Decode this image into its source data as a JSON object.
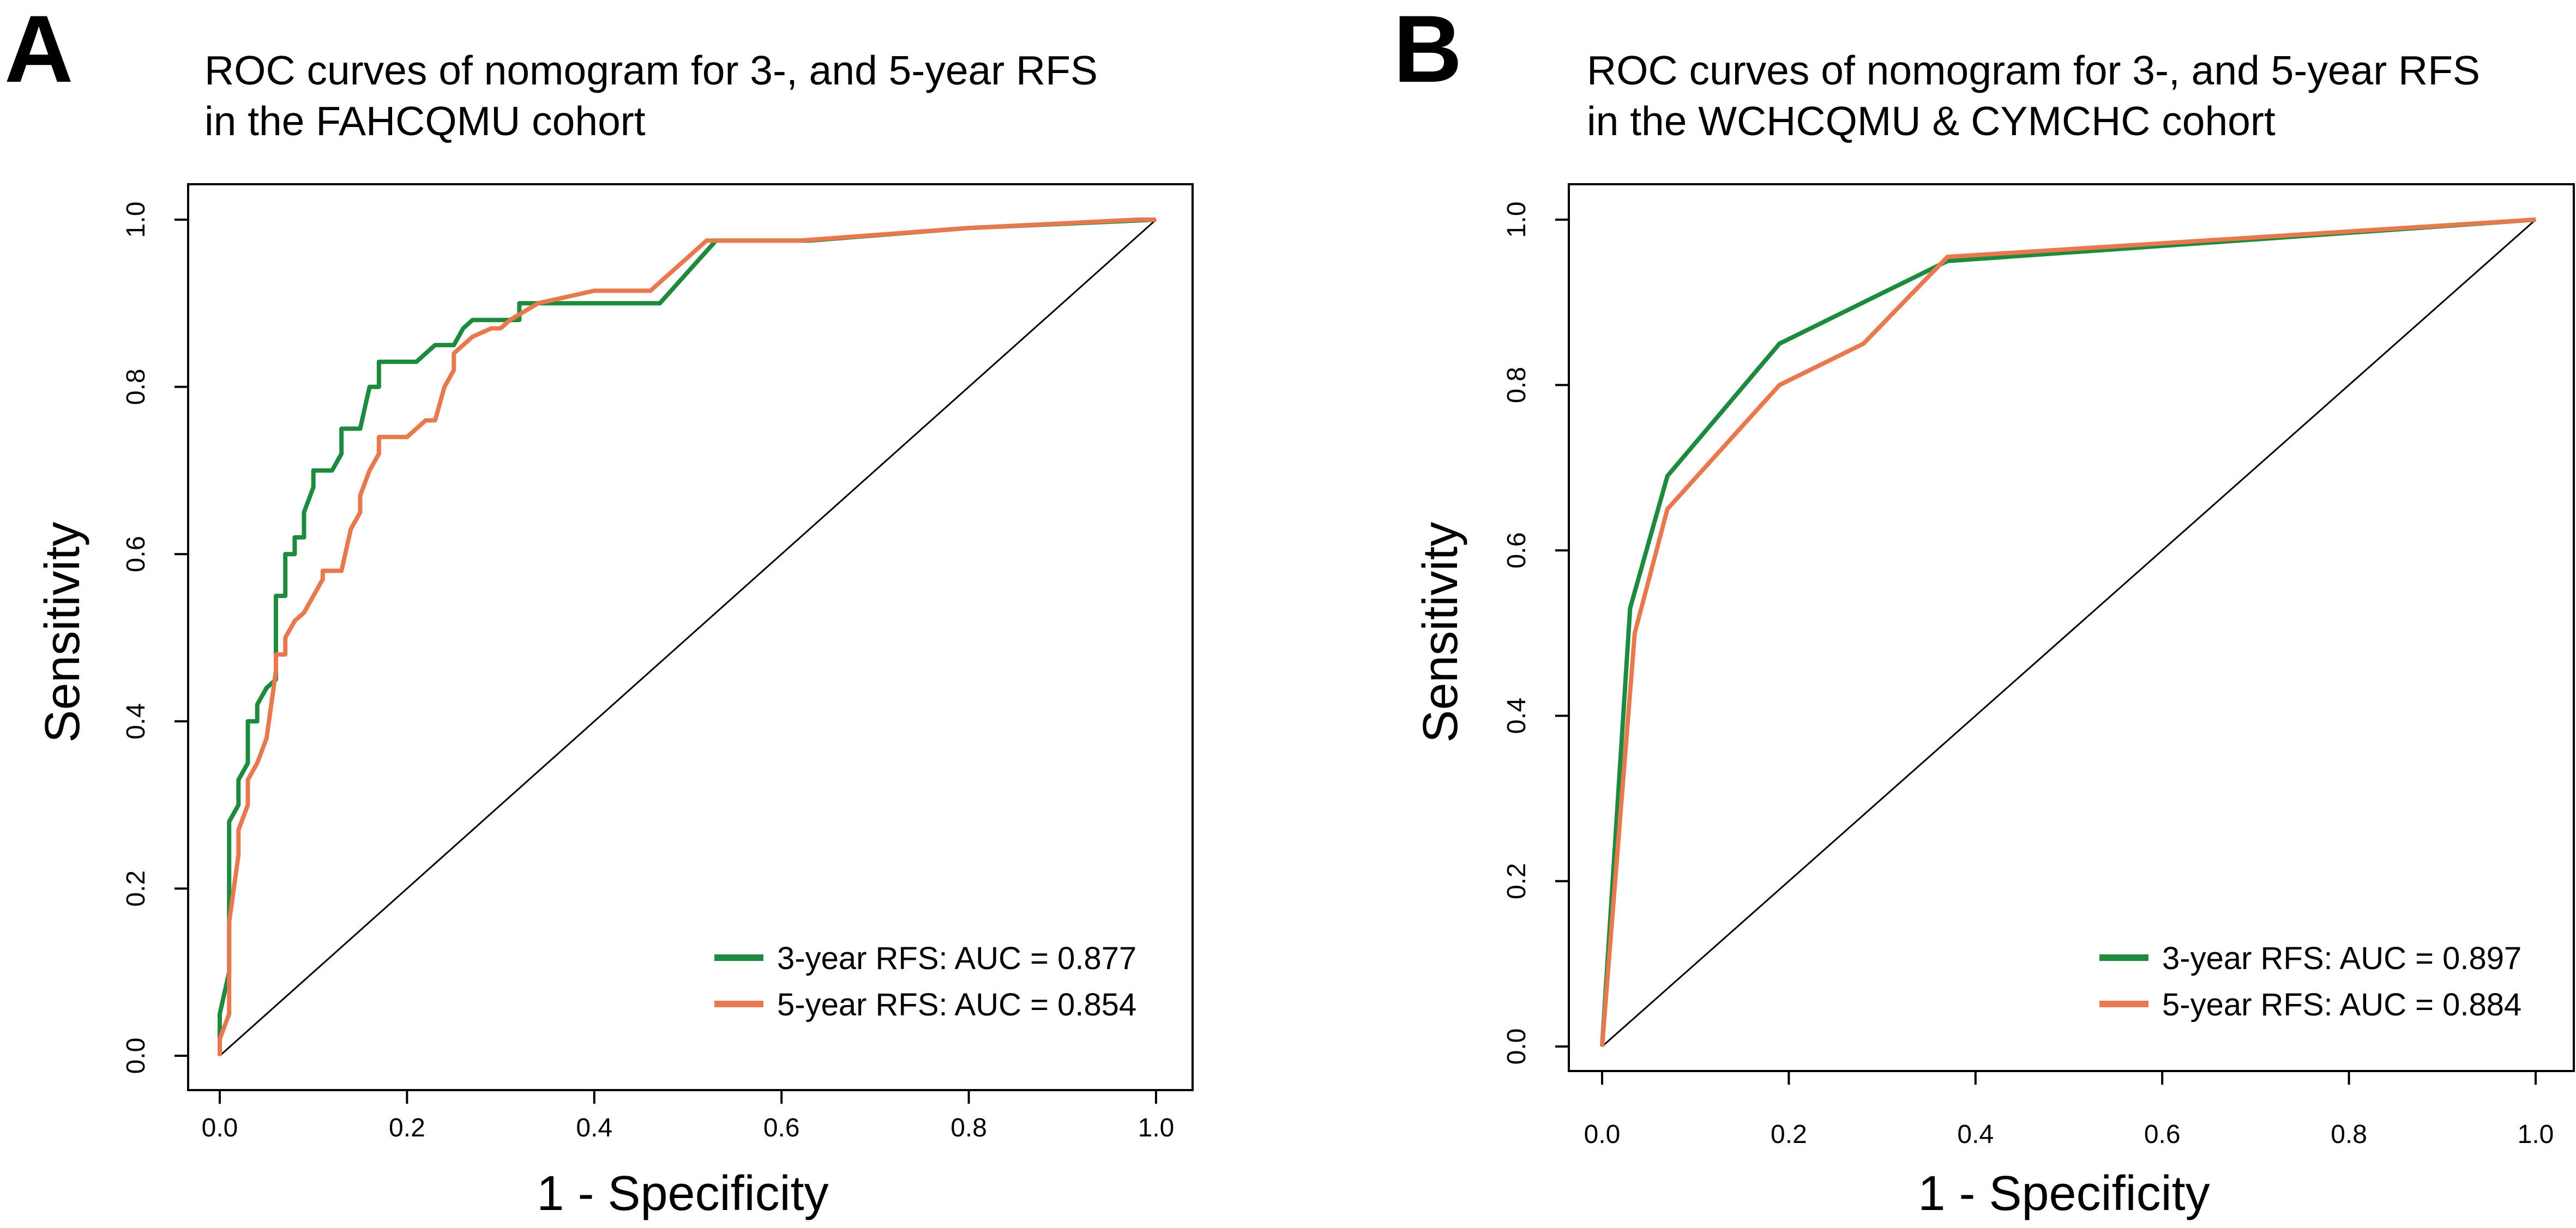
{
  "colors": {
    "series_3yr": "#1e8a3e",
    "series_5yr": "#e8794f",
    "diagonal": "#000000"
  },
  "chart_data": [
    {
      "type": "line",
      "panel_label": "A",
      "title_line1": "ROC curves of nomogram for 3-, and 5-year RFS",
      "title_line2": "in the FAHCQMU cohort",
      "xlabel": "1 - Specificity",
      "ylabel": "Sensitivity",
      "xlim": [
        0,
        1
      ],
      "ylim": [
        0,
        1
      ],
      "xticks": [
        "0.0",
        "0.2",
        "0.4",
        "0.6",
        "0.8",
        "1.0"
      ],
      "yticks": [
        "0.0",
        "0.2",
        "0.4",
        "0.6",
        "0.8",
        "1.0"
      ],
      "diagonal": true,
      "legend_position": "bottom-right",
      "series": [
        {
          "name": "3-year RFS",
          "legend": "3-year RFS: AUC = 0.877",
          "auc": 0.877,
          "color": "#1e8a3e",
          "x": [
            0.0,
            0.0,
            0.01,
            0.01,
            0.01,
            0.02,
            0.02,
            0.03,
            0.03,
            0.04,
            0.04,
            0.05,
            0.06,
            0.06,
            0.07,
            0.07,
            0.08,
            0.08,
            0.09,
            0.09,
            0.1,
            0.1,
            0.12,
            0.13,
            0.13,
            0.15,
            0.16,
            0.17,
            0.17,
            0.21,
            0.22,
            0.23,
            0.25,
            0.26,
            0.27,
            0.3,
            0.32,
            0.32,
            0.35,
            0.47,
            0.53,
            0.63,
            0.8,
            1.0
          ],
          "y": [
            0.0,
            0.05,
            0.1,
            0.2,
            0.28,
            0.3,
            0.33,
            0.35,
            0.4,
            0.4,
            0.42,
            0.44,
            0.45,
            0.55,
            0.55,
            0.6,
            0.6,
            0.62,
            0.62,
            0.65,
            0.68,
            0.7,
            0.7,
            0.72,
            0.75,
            0.75,
            0.8,
            0.8,
            0.83,
            0.83,
            0.84,
            0.85,
            0.85,
            0.87,
            0.88,
            0.88,
            0.88,
            0.9,
            0.9,
            0.9,
            0.975,
            0.975,
            0.99,
            1.0
          ]
        },
        {
          "name": "5-year RFS",
          "legend": "5-year RFS: AUC = 0.854",
          "auc": 0.854,
          "color": "#e8794f",
          "x": [
            0.0,
            0.0,
            0.01,
            0.01,
            0.02,
            0.02,
            0.03,
            0.03,
            0.04,
            0.05,
            0.06,
            0.06,
            0.07,
            0.07,
            0.08,
            0.09,
            0.1,
            0.11,
            0.11,
            0.13,
            0.14,
            0.15,
            0.15,
            0.16,
            0.17,
            0.17,
            0.19,
            0.2,
            0.22,
            0.23,
            0.24,
            0.25,
            0.25,
            0.26,
            0.27,
            0.29,
            0.3,
            0.31,
            0.34,
            0.4,
            0.46,
            0.52,
            0.62,
            0.8,
            0.98,
            1.0
          ],
          "y": [
            0.0,
            0.02,
            0.05,
            0.16,
            0.24,
            0.27,
            0.3,
            0.33,
            0.35,
            0.38,
            0.46,
            0.48,
            0.48,
            0.5,
            0.52,
            0.53,
            0.55,
            0.57,
            0.58,
            0.58,
            0.63,
            0.65,
            0.67,
            0.7,
            0.72,
            0.74,
            0.74,
            0.74,
            0.76,
            0.76,
            0.8,
            0.82,
            0.84,
            0.85,
            0.86,
            0.87,
            0.87,
            0.88,
            0.9,
            0.915,
            0.915,
            0.975,
            0.975,
            0.99,
            1.0,
            1.0
          ]
        }
      ]
    },
    {
      "type": "line",
      "panel_label": "B",
      "title_line1": "ROC curves of nomogram for 3-, and 5-year RFS",
      "title_line2": "in the WCHCQMU & CYMCHC cohort",
      "xlabel": "1 - Specificity",
      "ylabel": "Sensitivity",
      "xlim": [
        0,
        1
      ],
      "ylim": [
        0,
        1
      ],
      "xticks": [
        "0.0",
        "0.2",
        "0.4",
        "0.6",
        "0.8",
        "1.0"
      ],
      "yticks": [
        "0.0",
        "0.2",
        "0.4",
        "0.6",
        "0.8",
        "1.0"
      ],
      "diagonal": true,
      "legend_position": "bottom-right",
      "series": [
        {
          "name": "3-year RFS",
          "legend": "3-year RFS: AUC = 0.897",
          "auc": 0.897,
          "color": "#1e8a3e",
          "x": [
            0.0,
            0.03,
            0.07,
            0.19,
            0.37,
            1.0
          ],
          "y": [
            0.0,
            0.53,
            0.69,
            0.85,
            0.95,
            1.0
          ]
        },
        {
          "name": "5-year RFS",
          "legend": "5-year RFS: AUC = 0.884",
          "auc": 0.884,
          "color": "#e8794f",
          "x": [
            0.0,
            0.035,
            0.07,
            0.19,
            0.28,
            0.37,
            1.0
          ],
          "y": [
            0.0,
            0.5,
            0.65,
            0.8,
            0.85,
            0.955,
            1.0
          ]
        }
      ]
    }
  ]
}
